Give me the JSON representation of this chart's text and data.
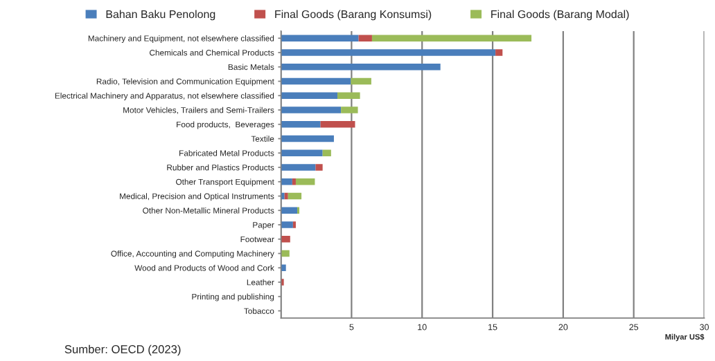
{
  "chart_data": {
    "type": "bar",
    "orientation": "horizontal",
    "stacked": true,
    "categories": [
      "Machinery and Equipment, not elsewhere classified",
      "Chemicals and Chemical Products",
      "Basic Metals",
      "Radio, Television and Communication Equipment",
      "Electrical Machinery and Apparatus, not elsewhere classified",
      "Motor Vehicles, Trailers and Semi-Trailers",
      "Food products,  Beverages",
      "Textile",
      "Fabricated Metal Products",
      "Rubber and Plastics Products",
      "Other Transport Equipment",
      "Medical, Precision and Optical Instruments",
      "Other Non-Metallic Mineral Products",
      "Paper",
      "Footwear",
      "Office, Accounting and Computing Machinery",
      "Wood and Products of Wood and Cork",
      "Leather",
      "Printing and publishing",
      "Tobacco"
    ],
    "series": [
      {
        "name": "Bahan Baku Penolong",
        "color": "#4a7ebb",
        "values": [
          5.5,
          15.2,
          11.3,
          4.95,
          4.0,
          4.25,
          2.8,
          3.75,
          2.95,
          2.45,
          0.8,
          0.25,
          1.15,
          0.85,
          0,
          0,
          0.35,
          0,
          null,
          0
        ]
      },
      {
        "name": "Final Goods (Barang Konsumsi)",
        "color": "#c0504d",
        "values": [
          0.95,
          0.5,
          0,
          0,
          0,
          0,
          2.45,
          0,
          0,
          0.5,
          0.25,
          0.25,
          0,
          0.2,
          0.65,
          0,
          0,
          0.2,
          0,
          0
        ]
      },
      {
        "name": "Final Goods (Barang Modal)",
        "color": "#9bbb59",
        "values": [
          11.3,
          0,
          0,
          1.45,
          1.6,
          1.2,
          0,
          0,
          0.6,
          0,
          1.35,
          0.95,
          0.15,
          0,
          0,
          0.6,
          0,
          0,
          0,
          0
        ]
      }
    ],
    "xlim": [
      0,
      30
    ],
    "xticks": [
      {
        "value": 0,
        "label": null
      },
      5,
      10,
      15,
      20,
      25,
      30
    ],
    "xlabel": "Milyar US$",
    "grid": "x",
    "legend": "top",
    "annotations": [
      "Sumber: OECD (2023)"
    ]
  }
}
